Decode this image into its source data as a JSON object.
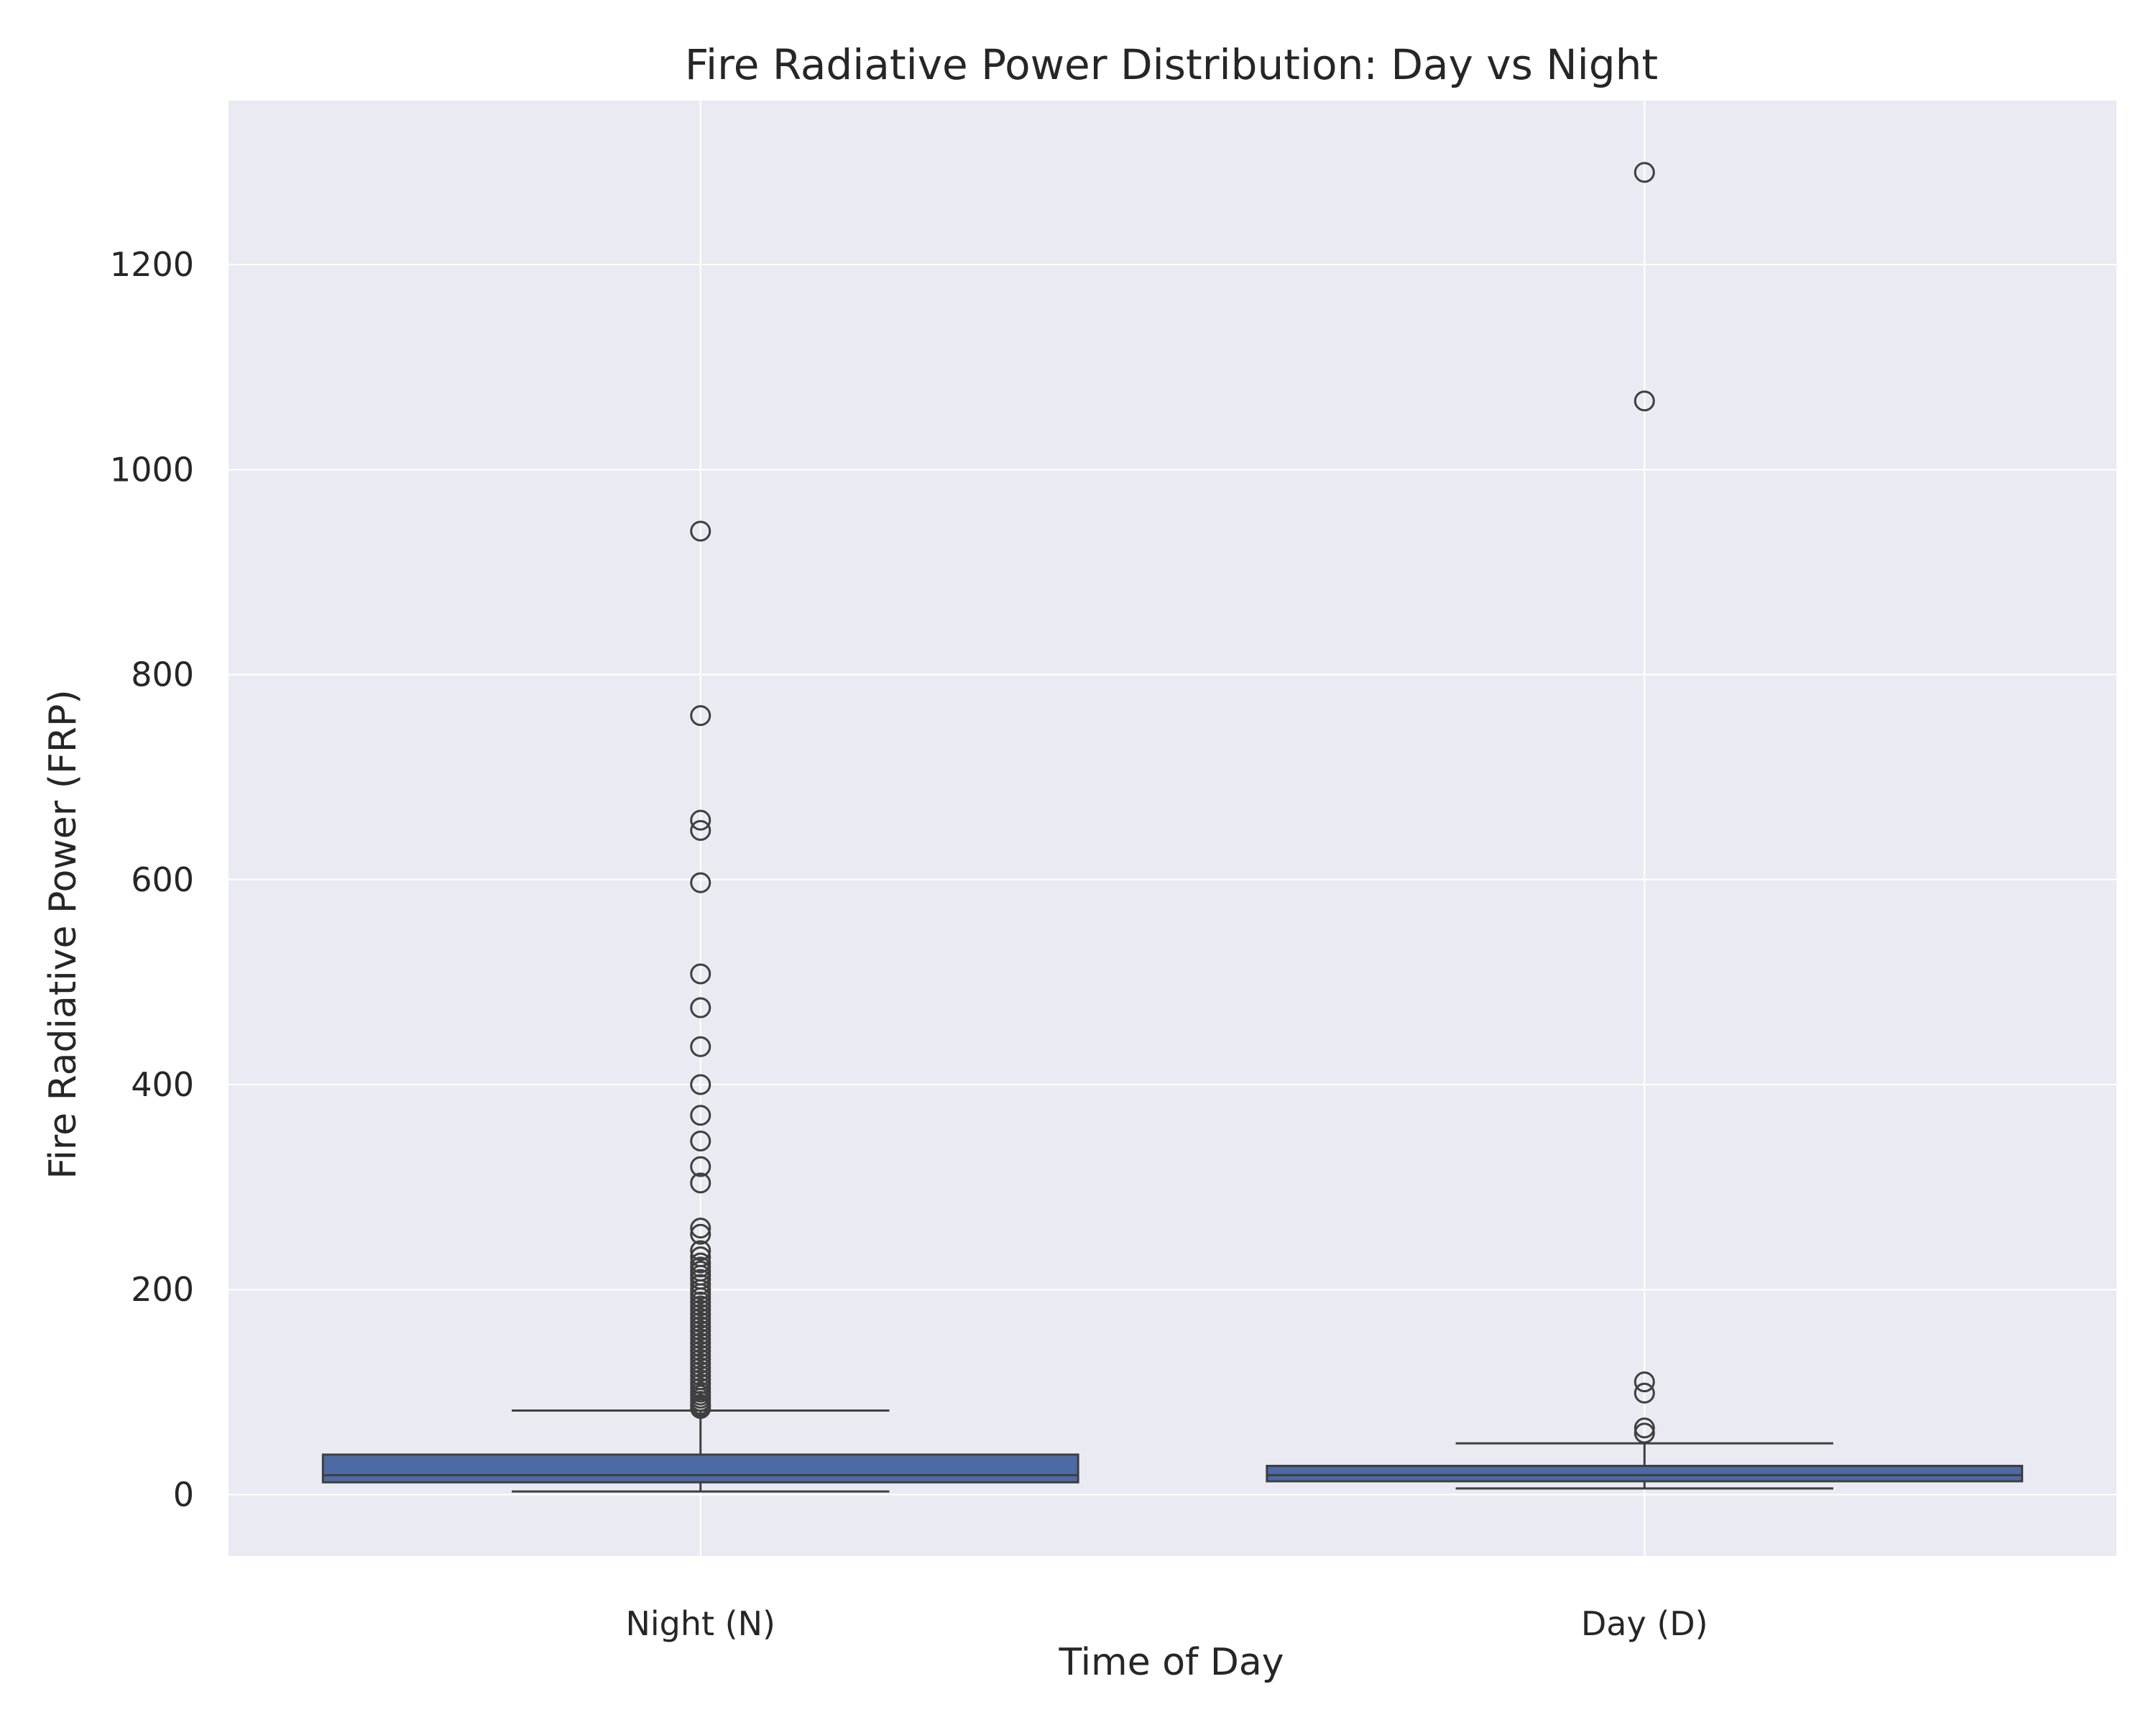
{
  "chart_data": {
    "type": "box",
    "title": "Fire Radiative Power Distribution: Day vs Night",
    "xlabel": "Time of Day",
    "ylabel": "Fire Radiative Power (FRP)",
    "ylim": [
      -60,
      1360
    ],
    "yticks": [
      0,
      200,
      400,
      600,
      800,
      1000,
      1200
    ],
    "grid": true,
    "categories": [
      "Night (N)",
      "Day (D)"
    ],
    "boxes": [
      {
        "category": "Night (N)",
        "whisker_low": 3,
        "q1": 12,
        "median": 19,
        "q3": 39,
        "whisker_high": 82,
        "outliers": [
          940,
          760,
          658,
          648,
          597,
          508,
          475,
          437,
          400,
          370,
          345,
          320,
          304,
          260,
          254,
          238,
          232,
          226,
          222,
          218,
          214,
          210,
          205,
          200,
          196,
          192,
          188,
          184,
          180,
          176,
          172,
          168,
          164,
          160,
          156,
          152,
          148,
          144,
          140,
          136,
          132,
          128,
          124,
          120,
          116,
          112,
          108,
          104,
          100,
          97,
          94,
          91,
          88,
          86,
          84
        ]
      },
      {
        "category": "Day (D)",
        "whisker_low": 6,
        "q1": 13,
        "median": 19,
        "q3": 28,
        "whisker_high": 50,
        "outliers": [
          1290,
          1067,
          110,
          99,
          65,
          60
        ]
      }
    ],
    "colors": {
      "box_fill": "#4c6aa4",
      "line": "#3f3f3f",
      "plot_bg": "#eaeaf2",
      "grid": "#ffffff"
    }
  }
}
